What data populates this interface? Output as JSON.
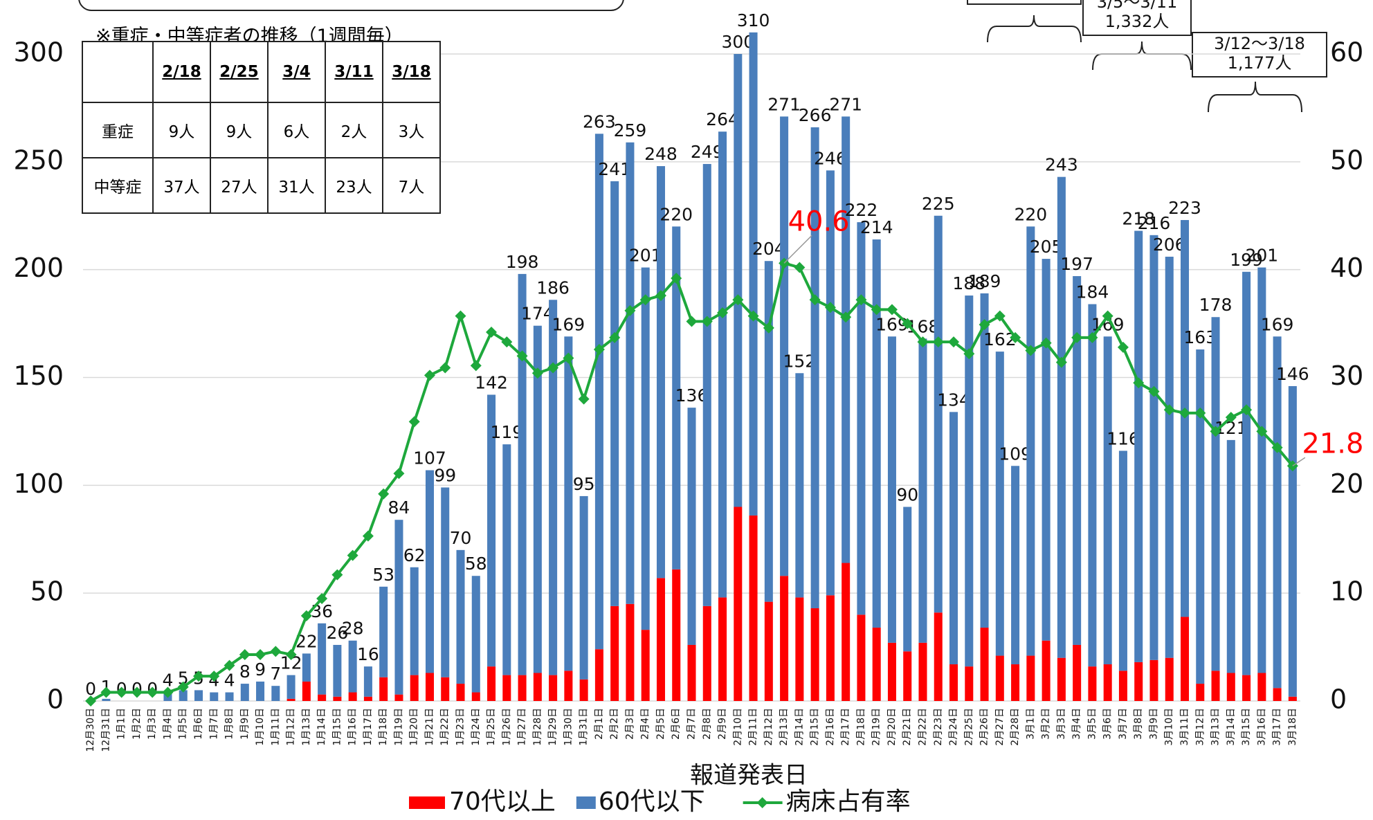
{
  "chart_data": {
    "type": "bar",
    "categories": [
      "12月30日",
      "12月31日",
      "1月1日",
      "1月2日",
      "1月3日",
      "1月4日",
      "1月5日",
      "1月6日",
      "1月7日",
      "1月8日",
      "1月9日",
      "1月10日",
      "1月11日",
      "1月12日",
      "1月13日",
      "1月14日",
      "1月15日",
      "1月16日",
      "1月17日",
      "1月18日",
      "1月19日",
      "1月20日",
      "1月21日",
      "1月22日",
      "1月23日",
      "1月24日",
      "1月25日",
      "1月26日",
      "1月27日",
      "1月28日",
      "1月29日",
      "1月30日",
      "1月31日",
      "2月1日",
      "2月2日",
      "2月3日",
      "2月4日",
      "2月5日",
      "2月6日",
      "2月7日",
      "2月8日",
      "2月9日",
      "2月10日",
      "2月11日",
      "2月12日",
      "2月13日",
      "2月14日",
      "2月15日",
      "2月16日",
      "2月17日",
      "2月18日",
      "2月19日",
      "2月20日",
      "2月21日",
      "2月22日",
      "2月23日",
      "2月24日",
      "2月25日",
      "2月26日",
      "2月27日",
      "2月28日",
      "3月1日",
      "3月2日",
      "3月3日",
      "3月4日",
      "3月5日",
      "3月6日",
      "3月7日",
      "3月8日",
      "3月9日",
      "3月10日",
      "3月11日",
      "3月12日",
      "3月13日",
      "3月14日",
      "3月15日",
      "3月16日",
      "3月17日",
      "3月18日"
    ],
    "series": [
      {
        "name": "70代以上",
        "color": "#ff0000",
        "values": [
          0,
          0,
          0,
          0,
          0,
          0,
          0,
          0,
          0,
          0,
          0,
          0,
          0,
          1,
          9,
          3,
          2,
          4,
          2,
          11,
          3,
          12,
          13,
          11,
          8,
          4,
          16,
          12,
          12,
          13,
          12,
          14,
          10,
          24,
          44,
          45,
          33,
          57,
          61,
          26,
          44,
          48,
          90,
          86,
          46,
          58,
          48,
          43,
          49,
          64,
          40,
          34,
          27,
          23,
          27,
          41,
          17,
          16,
          34,
          21,
          17,
          21,
          28,
          20,
          26,
          16,
          17,
          14,
          18,
          19,
          20,
          39,
          8,
          14,
          13,
          12,
          13,
          6,
          2
        ]
      },
      {
        "name": "60代以下",
        "color": "#4a7ebb",
        "values": [
          0,
          1,
          0,
          0,
          0,
          4,
          5,
          5,
          4,
          4,
          8,
          9,
          7,
          11,
          13,
          33,
          24,
          24,
          14,
          42,
          81,
          50,
          94,
          88,
          62,
          54,
          126,
          107,
          186,
          161,
          174,
          155,
          85,
          239,
          197,
          214,
          168,
          191,
          159,
          110,
          205,
          216,
          210,
          224,
          158,
          213,
          104,
          223,
          197,
          207,
          182,
          180,
          142,
          67,
          141,
          184,
          117,
          172,
          155,
          141,
          92,
          199,
          177,
          223,
          171,
          168,
          152,
          102,
          200,
          197,
          186,
          184,
          155,
          164,
          108,
          187,
          188,
          163,
          144
        ]
      },
      {
        "name": "病床占有率",
        "color": "#1ea83c",
        "axis": "y2",
        "type": "line",
        "values": [
          0,
          0.8,
          0.8,
          0.8,
          0.8,
          0.8,
          1.3,
          2.3,
          2.3,
          3.3,
          4.3,
          4.3,
          4.6,
          4.3,
          7.9,
          9.5,
          11.7,
          13.5,
          15.3,
          19.2,
          21.1,
          25.9,
          30.2,
          30.9,
          35.7,
          31.1,
          34.2,
          33.3,
          32.0,
          30.4,
          30.9,
          31.8,
          28.0,
          32.6,
          33.7,
          36.2,
          37.2,
          37.6,
          39.2,
          35.2,
          35.2,
          36.0,
          37.2,
          35.7,
          34.6,
          40.6,
          40.2,
          37.2,
          36.5,
          35.6,
          37.2,
          36.3,
          36.3,
          35.0,
          33.3,
          33.3,
          33.3,
          32.2,
          34.9,
          35.7,
          33.7,
          32.5,
          33.2,
          31.4,
          33.7,
          33.7,
          35.7,
          32.8,
          29.5,
          28.7,
          27.0,
          26.7,
          26.7,
          25.0,
          26.3,
          27.0,
          25.0,
          23.5,
          21.8
        ],
        "value_labels": [
          null,
          null,
          null,
          null,
          null,
          null,
          null,
          null,
          null,
          null,
          null,
          null,
          null,
          null,
          null,
          null,
          null,
          null,
          null,
          null,
          null,
          null,
          null,
          null,
          null,
          null,
          null,
          null,
          null,
          null,
          null,
          null,
          null,
          null,
          null,
          null,
          null,
          null,
          null,
          null,
          null,
          null,
          null,
          null,
          null,
          "40.6",
          null,
          null,
          null,
          null,
          null,
          null,
          null,
          null,
          null,
          null,
          null,
          null,
          null,
          null,
          null,
          null,
          null,
          null,
          null,
          null,
          null,
          null,
          null,
          null,
          null,
          null,
          null,
          null,
          null,
          null,
          null,
          null,
          "21.8"
        ],
        "label_color": "#ff0000"
      }
    ],
    "totals": [
      0,
      1,
      0,
      0,
      0,
      4,
      5,
      5,
      4,
      4,
      8,
      9,
      7,
      12,
      22,
      36,
      26,
      28,
      16,
      53,
      84,
      62,
      107,
      99,
      70,
      58,
      142,
      119,
      198,
      174,
      186,
      169,
      95,
      263,
      241,
      259,
      201,
      248,
      220,
      136,
      249,
      264,
      300,
      310,
      204,
      271,
      152,
      266,
      246,
      271,
      222,
      214,
      169,
      90,
      168,
      225,
      134,
      188,
      189,
      162,
      109,
      220,
      205,
      243,
      197,
      184,
      169,
      116,
      218,
      216,
      206,
      223,
      163,
      178,
      121,
      199,
      201,
      169,
      146
    ],
    "ylim": [
      0,
      300
    ],
    "yticks": [
      0,
      50,
      100,
      150,
      200,
      250,
      300
    ],
    "y2lim": [
      0,
      60
    ],
    "y2ticks": [
      0,
      10,
      20,
      30,
      40,
      50,
      60
    ],
    "grid": true,
    "x_label": "報道発表日",
    "legend": "bottom"
  },
  "table": {
    "title": "※重症・中等症者の推移（1週間毎）",
    "header": [
      "2/18",
      "2/25",
      "3/4",
      "3/11",
      "3/18"
    ],
    "rows": [
      {
        "label": "重症",
        "cells": [
          "9人",
          "9人",
          "6人",
          "2人",
          "3人"
        ]
      },
      {
        "label": "中等症",
        "cells": [
          "37人",
          "27人",
          "31人",
          "23人",
          "7人"
        ]
      }
    ]
  },
  "weekly": [
    {
      "period": "3/5～3/11",
      "total": "1,332人"
    },
    {
      "period": "3/12～3/18",
      "total": "1,177人"
    }
  ]
}
